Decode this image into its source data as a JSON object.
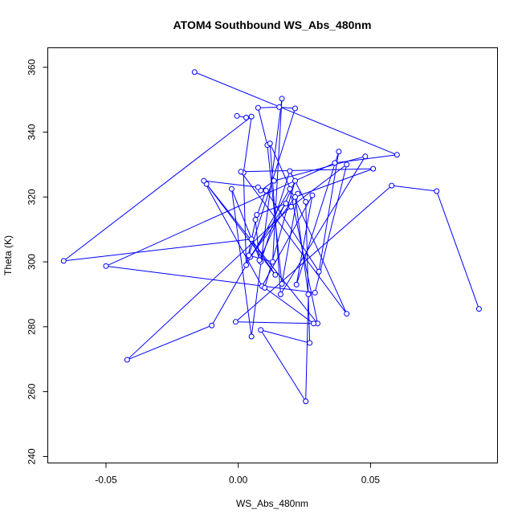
{
  "chart_data": {
    "type": "line",
    "title": "ATOM4 Southbound WS_Abs_480nm",
    "xlabel": "WS_Abs_480nm",
    "ylabel": "Theta (K)",
    "xlim": [
      -0.072,
      0.098
    ],
    "ylim": [
      238,
      366
    ],
    "xticks": [
      -0.05,
      0.0,
      0.05
    ],
    "xtick_labels": [
      "-0.05",
      "0.00",
      "0.05"
    ],
    "yticks": [
      240,
      260,
      280,
      300,
      320,
      340,
      360
    ],
    "ytick_labels": [
      "240",
      "260",
      "280",
      "300",
      "320",
      "340",
      "360"
    ],
    "grid": false,
    "marker": "open-circle",
    "line_color": "#0000ff",
    "series": [
      {
        "points": [
          [
            -0.0165,
            358.5
          ],
          [
            0.06,
            333.0
          ],
          [
            0.0365,
            330.5
          ],
          [
            -0.05,
            298.7
          ],
          [
            0.029,
            290.5
          ],
          [
            0.041,
            330.0
          ],
          [
            0.02,
            317.0
          ],
          [
            -0.042,
            269.8
          ],
          [
            -0.01,
            280.4
          ],
          [
            0.0195,
            322.5
          ],
          [
            0.03,
            281.0
          ],
          [
            -0.012,
            324.0
          ],
          [
            0.014,
            296.0
          ],
          [
            0.005,
            307.0
          ],
          [
            -0.066,
            300.3
          ],
          [
            0.005,
            344.8
          ],
          [
            0.002,
            327.5
          ],
          [
            0.003,
            299.0
          ],
          [
            0.007,
            314.5
          ],
          [
            0.018,
            318.0
          ],
          [
            0.0045,
            301.5
          ],
          [
            0.0225,
            321.0
          ],
          [
            0.0165,
            293.2
          ],
          [
            0.011,
            336.0
          ],
          [
            0.0075,
            347.5
          ],
          [
            0.0155,
            347.7
          ],
          [
            0.0215,
            347.3
          ],
          [
            0.004,
            302.0
          ],
          [
            0.013,
            300.0
          ],
          [
            0.0165,
            350.3
          ],
          [
            0.005,
            277.0
          ],
          [
            -0.0025,
            322.5
          ],
          [
            0.0085,
            300.0
          ],
          [
            0.0195,
            328.0
          ],
          [
            0.0255,
            318.5
          ],
          [
            0.027,
            275.0
          ],
          [
            0.0085,
            279.0
          ],
          [
            0.0255,
            257.0
          ],
          [
            0.0265,
            290.0
          ],
          [
            0.0215,
            320.0
          ],
          [
            0.051,
            328.7
          ],
          [
            0.001,
            327.8
          ],
          [
            0.041,
            284.0
          ],
          [
            0.012,
            336.5
          ],
          [
            0.016,
            290.0
          ],
          [
            0.048,
            332.5
          ],
          [
            0.0135,
            325.0
          ],
          [
            0.0085,
            322.0
          ],
          [
            0.0075,
            323.0
          ],
          [
            -0.013,
            325.0
          ],
          [
            0.009,
            292.5
          ],
          [
            0.028,
            320.5
          ],
          [
            0.022,
            293.0
          ],
          [
            0.038,
            334.0
          ],
          [
            0.0305,
            297.0
          ],
          [
            0.0105,
            322.0
          ],
          [
            0.0065,
            313.0
          ],
          [
            0.008,
            300.5
          ],
          [
            0.0215,
            325.0
          ],
          [
            0.01,
            292.0
          ],
          [
            0.0285,
            281.0
          ],
          [
            -0.001,
            281.5
          ],
          [
            0.058,
            323.5
          ],
          [
            0.075,
            321.8
          ],
          [
            0.091,
            285.5
          ]
        ]
      },
      {
        "points": [
          [
            -0.0005,
            345.0
          ],
          [
            0.003,
            344.5
          ]
        ]
      }
    ]
  }
}
